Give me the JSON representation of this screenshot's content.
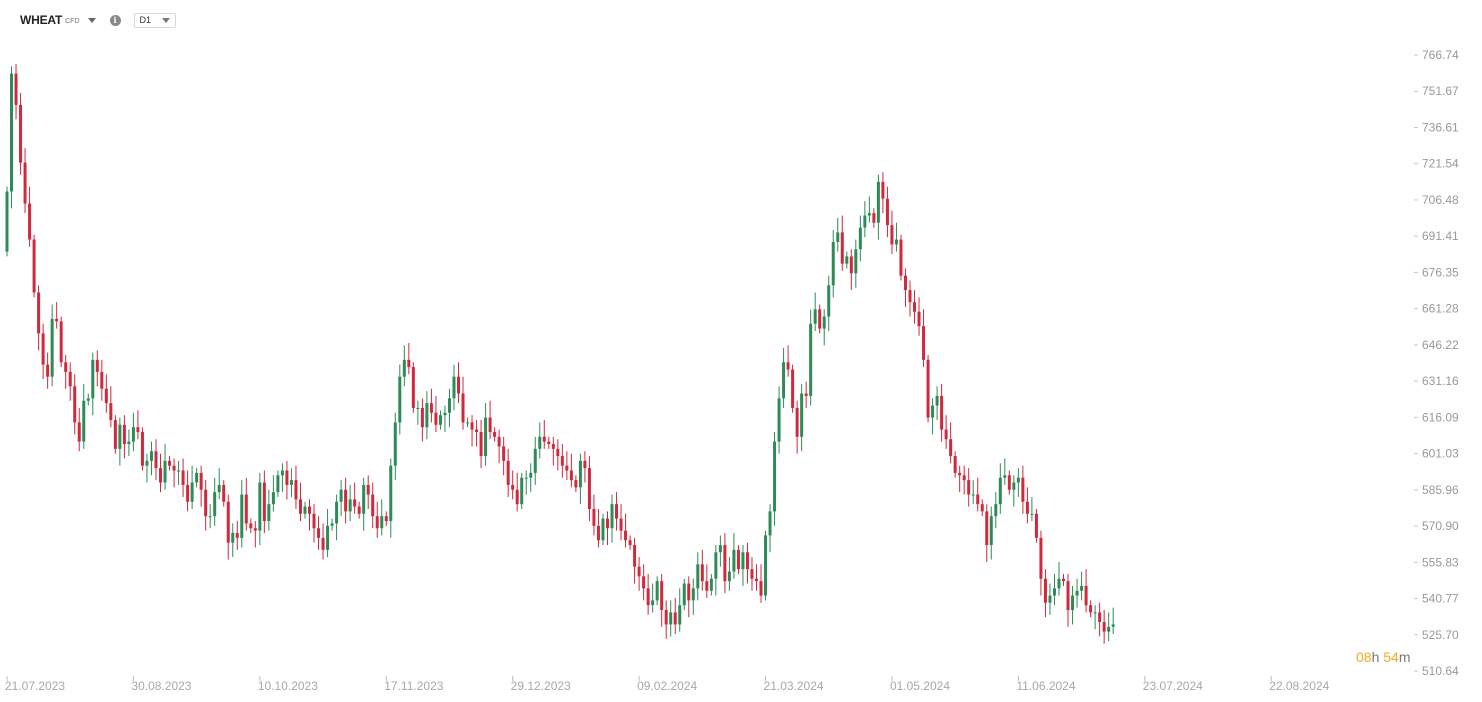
{
  "toolbar": {
    "symbol": "WHEAT",
    "symbol_type": "CFD",
    "info_icon": "info-icon",
    "timeframe": "D1"
  },
  "countdown": {
    "hours": "08",
    "hours_unit": "h",
    "minutes": "54",
    "minutes_unit": "m"
  },
  "colors": {
    "up": "#2e8b57",
    "down": "#d0283c",
    "axis_text": "#999999",
    "countdown_accent": "#f5a623"
  },
  "chart_data": {
    "type": "candlestick",
    "title": "",
    "ylim": [
      510.64,
      774
    ],
    "y_ticks": [
      "766.74",
      "751.67",
      "736.61",
      "721.54",
      "706.48",
      "691.41",
      "676.35",
      "661.28",
      "646.22",
      "631.16",
      "616.09",
      "601.03",
      "585.96",
      "570.90",
      "555.83",
      "540.77",
      "525.70",
      "510.64"
    ],
    "x_ticks": [
      "21.07.2023",
      "30.08.2023",
      "10.10.2023",
      "17.11.2023",
      "29.12.2023",
      "09.02.2024",
      "21.03.2024",
      "01.05.2024",
      "11.06.2024",
      "23.07.2024",
      "22.08.2024"
    ],
    "x_tick_bar_index": [
      0,
      28,
      56,
      84,
      112,
      140,
      168,
      196,
      224,
      252,
      280
    ],
    "grid": false,
    "legend": "none",
    "close": [
      710,
      759,
      746,
      722,
      705,
      690,
      668,
      651,
      638,
      633,
      657,
      656,
      639,
      635,
      629,
      614,
      606,
      623,
      624,
      640,
      635,
      628,
      622,
      615,
      603,
      613,
      605,
      606,
      612,
      610,
      596,
      598,
      602,
      595,
      589,
      598,
      596,
      594,
      594,
      588,
      581,
      589,
      593,
      586,
      575,
      575,
      585,
      588,
      581,
      564,
      568,
      566,
      584,
      572,
      570,
      569,
      589,
      573,
      580,
      585,
      592,
      594,
      588,
      590,
      582,
      576,
      579,
      576,
      570,
      566,
      561,
      571,
      572,
      581,
      586,
      577,
      582,
      579,
      576,
      588,
      584,
      575,
      570,
      575,
      573,
      596,
      614,
      633,
      640,
      637,
      620,
      620,
      612,
      622,
      618,
      613,
      617,
      618,
      624,
      633,
      626,
      614,
      614,
      611,
      610,
      600,
      616,
      610,
      608,
      604,
      598,
      588,
      586,
      580,
      591,
      591,
      593,
      603,
      608,
      606,
      605,
      603,
      600,
      596,
      594,
      590,
      587,
      598,
      595,
      578,
      571,
      565,
      574,
      570,
      580,
      574,
      569,
      565,
      563,
      554,
      550,
      545,
      538,
      540,
      548,
      536,
      530,
      535,
      530,
      538,
      547,
      540,
      545,
      555,
      548,
      544,
      549,
      560,
      563,
      548,
      552,
      561,
      553,
      560,
      553,
      549,
      548,
      542,
      567,
      577,
      606,
      624,
      639,
      636,
      620,
      608,
      626,
      625,
      655,
      661,
      653,
      658,
      671,
      689,
      693,
      680,
      683,
      676,
      686,
      695,
      700,
      701,
      697,
      714,
      707,
      696,
      688,
      690,
      675,
      669,
      664,
      660,
      654,
      640,
      616,
      621,
      625,
      611,
      607,
      600,
      593,
      592,
      590,
      584,
      584,
      580,
      577,
      563,
      575,
      580,
      591,
      592,
      586,
      589,
      591,
      581,
      576,
      576,
      566,
      549,
      539,
      542,
      545,
      549,
      548,
      536,
      542,
      544,
      546,
      538,
      535,
      535,
      531,
      527,
      529,
      530
    ]
  }
}
